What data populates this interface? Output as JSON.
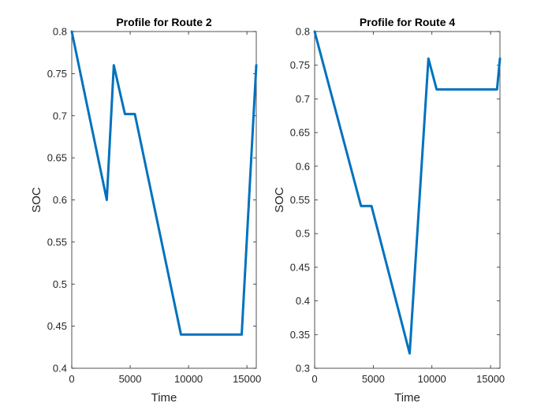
{
  "colors": {
    "line": "#0072BD",
    "axis": "#262626",
    "background": "#ffffff"
  },
  "chart_data": [
    {
      "type": "line",
      "title": "Profile for Route 2",
      "xlabel": "Time",
      "ylabel": "SOC",
      "xlim": [
        0,
        15800
      ],
      "ylim": [
        0.4,
        0.8
      ],
      "xticks": [
        0,
        5000,
        10000,
        15000
      ],
      "xtick_labels": [
        "0",
        "5000",
        "10000",
        "15000"
      ],
      "yticks": [
        0.4,
        0.45,
        0.5,
        0.55,
        0.6,
        0.65,
        0.7,
        0.75,
        0.8
      ],
      "ytick_labels": [
        "0.4",
        "0.45",
        "0.5",
        "0.55",
        "0.6",
        "0.65",
        "0.7",
        "0.75",
        "0.8"
      ],
      "grid": false,
      "series": [
        {
          "x": [
            0,
            3000,
            3600,
            4550,
            5400,
            9350,
            14550,
            15800
          ],
          "y": [
            0.8,
            0.6,
            0.76,
            0.702,
            0.702,
            0.44,
            0.44,
            0.76
          ]
        }
      ]
    },
    {
      "type": "line",
      "title": "Profile for Route 4",
      "xlabel": "Time",
      "ylabel": "SOC",
      "xlim": [
        0,
        15800
      ],
      "ylim": [
        0.3,
        0.8
      ],
      "xticks": [
        0,
        5000,
        10000,
        15000
      ],
      "xtick_labels": [
        "0",
        "5000",
        "10000",
        "15000"
      ],
      "yticks": [
        0.3,
        0.35,
        0.4,
        0.45,
        0.5,
        0.55,
        0.6,
        0.65,
        0.7,
        0.75,
        0.8
      ],
      "ytick_labels": [
        "0.3",
        "0.35",
        "0.4",
        "0.45",
        "0.5",
        "0.55",
        "0.6",
        "0.65",
        "0.7",
        "0.75",
        "0.8"
      ],
      "grid": false,
      "series": [
        {
          "x": [
            0,
            3950,
            4850,
            8100,
            9700,
            10400,
            15550,
            15800
          ],
          "y": [
            0.8,
            0.541,
            0.541,
            0.322,
            0.76,
            0.714,
            0.714,
            0.76
          ]
        }
      ]
    }
  ]
}
